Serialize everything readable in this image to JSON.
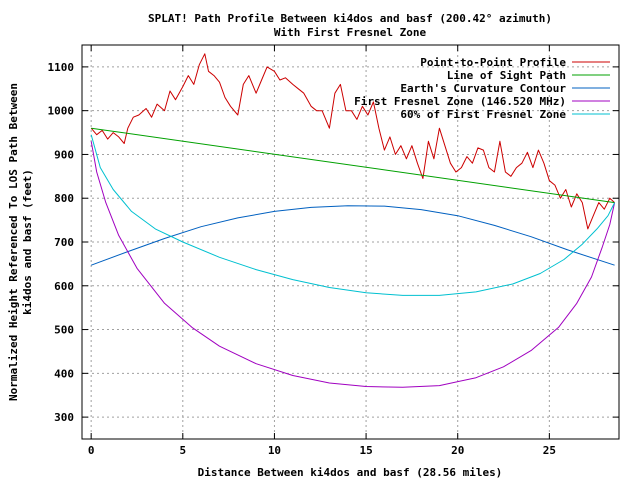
{
  "chart_data": {
    "type": "line",
    "title": "SPLAT! Path Profile Between ki4dos and basf (200.42° azimuth)",
    "subtitle": "With First Fresnel Zone",
    "xlabel": "Distance Between ki4dos and basf (28.56 miles)",
    "ylabel_line1": "Normalized Height Referenced To LOS Path Between",
    "ylabel_line2": "ki4dos and basf (feet)",
    "xlim": [
      -0.5,
      28.8
    ],
    "ylim": [
      250,
      1150
    ],
    "xticks": [
      0,
      5,
      10,
      15,
      20,
      25
    ],
    "yticks": [
      300,
      400,
      500,
      600,
      700,
      800,
      900,
      1000,
      1100
    ],
    "grid": true,
    "legend_position": "top-right",
    "series": [
      {
        "name": "Point-to-Point Profile",
        "color": "#cc0000",
        "x": [
          0,
          0.3,
          0.6,
          0.9,
          1.2,
          1.5,
          1.8,
          2.0,
          2.3,
          2.6,
          3.0,
          3.3,
          3.6,
          4.0,
          4.3,
          4.6,
          5.0,
          5.3,
          5.6,
          5.9,
          6.2,
          6.4,
          6.7,
          7.0,
          7.3,
          7.6,
          8.0,
          8.3,
          8.6,
          9.0,
          9.3,
          9.6,
          10.0,
          10.3,
          10.6,
          11.0,
          11.3,
          11.6,
          12.0,
          12.3,
          12.6,
          13.0,
          13.3,
          13.6,
          13.9,
          14.2,
          14.5,
          14.8,
          15.1,
          15.4,
          15.7,
          16.0,
          16.3,
          16.6,
          16.9,
          17.2,
          17.5,
          17.8,
          18.1,
          18.4,
          18.7,
          19.0,
          19.3,
          19.6,
          19.9,
          20.2,
          20.5,
          20.8,
          21.1,
          21.4,
          21.7,
          22.0,
          22.3,
          22.6,
          22.9,
          23.2,
          23.5,
          23.8,
          24.1,
          24.4,
          24.7,
          25.0,
          25.3,
          25.6,
          25.9,
          26.2,
          26.5,
          26.8,
          27.1,
          27.4,
          27.7,
          28.0,
          28.3,
          28.56
        ],
        "y": [
          960,
          945,
          955,
          935,
          950,
          940,
          925,
          960,
          985,
          990,
          1005,
          985,
          1015,
          1000,
          1045,
          1025,
          1055,
          1080,
          1060,
          1105,
          1130,
          1090,
          1080,
          1065,
          1030,
          1010,
          990,
          1060,
          1080,
          1040,
          1070,
          1100,
          1090,
          1070,
          1075,
          1060,
          1050,
          1040,
          1010,
          1000,
          1000,
          960,
          1040,
          1060,
          1000,
          1000,
          980,
          1010,
          990,
          1020,
          960,
          910,
          940,
          900,
          920,
          890,
          920,
          880,
          845,
          930,
          890,
          960,
          920,
          880,
          860,
          870,
          895,
          880,
          915,
          910,
          870,
          860,
          930,
          860,
          850,
          870,
          880,
          905,
          870,
          910,
          880,
          840,
          830,
          800,
          820,
          780,
          810,
          790,
          730,
          760,
          790,
          775,
          800,
          790
        ]
      },
      {
        "name": "Line of Sight Path",
        "color": "#00a000",
        "x": [
          0,
          28.56
        ],
        "y": [
          960,
          790
        ]
      },
      {
        "name": "Earth's Curvature Contour",
        "color": "#0060c0",
        "x": [
          0,
          2,
          4,
          6,
          8,
          10,
          12,
          14,
          16,
          18,
          20,
          22,
          24,
          26,
          28.56
        ],
        "y": [
          647,
          678,
          708,
          735,
          755,
          770,
          779,
          783,
          782,
          774,
          760,
          738,
          712,
          682,
          647
        ]
      },
      {
        "name": "First Fresnel Zone (146.520 MHz)",
        "color": "#a000c0",
        "x": [
          0,
          0.3,
          0.8,
          1.5,
          2.5,
          4,
          5.5,
          7,
          9,
          11,
          13,
          15,
          17,
          19,
          21,
          22.5,
          24,
          25.5,
          26.5,
          27.3,
          27.9,
          28.3,
          28.56
        ],
        "y": [
          930,
          860,
          790,
          715,
          640,
          560,
          505,
          462,
          422,
          395,
          378,
          370,
          368,
          372,
          390,
          415,
          452,
          505,
          560,
          620,
          690,
          740,
          790
        ]
      },
      {
        "name": "60% of First Fresnel Zone",
        "color": "#00c0d0",
        "x": [
          0,
          0.5,
          1.2,
          2.2,
          3.5,
          5,
          7,
          9,
          11,
          13,
          15,
          17,
          19,
          21,
          23,
          24.5,
          25.8,
          26.8,
          27.6,
          28.2,
          28.56
        ],
        "y": [
          945,
          870,
          820,
          770,
          730,
          700,
          665,
          637,
          614,
          596,
          584,
          578,
          578,
          586,
          604,
          628,
          660,
          695,
          730,
          760,
          790
        ]
      }
    ]
  }
}
